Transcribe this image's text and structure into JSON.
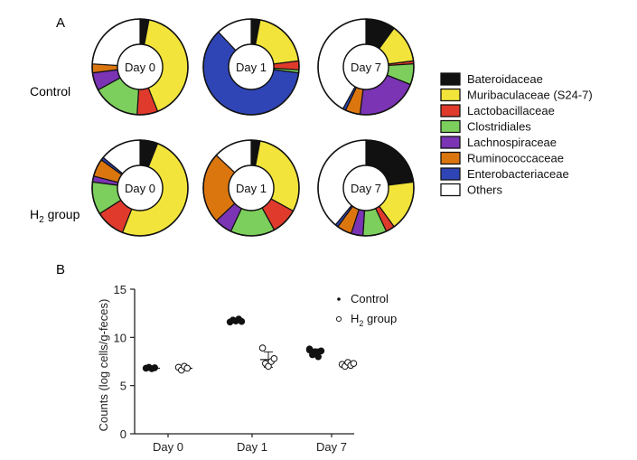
{
  "panel_a": {
    "label": "A",
    "row_labels": [
      "Control",
      "H2 group"
    ],
    "center_labels": [
      "Day 0",
      "Day 1",
      "Day 7"
    ],
    "categories": [
      {
        "name": "Bateroidaceae",
        "color": "#111111"
      },
      {
        "name": "Muribaculaceae (S24-7)",
        "color": "#f2e43a"
      },
      {
        "name": "Lactobacillaceae",
        "color": "#e03a2c"
      },
      {
        "name": "Clostridiales",
        "color": "#7ccf5c"
      },
      {
        "name": "Lachnospiraceae",
        "color": "#7a34b4"
      },
      {
        "name": "Ruminococcaceae",
        "color": "#db760f"
      },
      {
        "name": "Enterobacteriaceae",
        "color": "#2f45b6"
      },
      {
        "name": "Others",
        "color": "#ffffff"
      }
    ]
  },
  "panel_b": {
    "label": "B",
    "legend": [
      "Control",
      "H2 group"
    ]
  },
  "chart_data": [
    {
      "type": "pie",
      "title": "Control - Day 0",
      "group": "Control",
      "day": "Day 0",
      "center_label": "Day 0",
      "categories": [
        "Bateroidaceae",
        "Muribaculaceae (S24-7)",
        "Lactobacillaceae",
        "Clostridiales",
        "Lachnospiraceae",
        "Ruminococcaceae",
        "Enterobacteriaceae",
        "Others"
      ],
      "values": [
        3,
        41,
        7,
        16,
        6,
        3,
        0,
        24
      ]
    },
    {
      "type": "pie",
      "title": "Control - Day 1",
      "group": "Control",
      "day": "Day 1",
      "center_label": "Day 1",
      "categories": [
        "Bateroidaceae",
        "Muribaculaceae (S24-7)",
        "Lactobacillaceae",
        "Clostridiales",
        "Lachnospiraceae",
        "Ruminococcaceae",
        "Enterobacteriaceae",
        "Others"
      ],
      "values": [
        3,
        20,
        3,
        1,
        0,
        0,
        61,
        12
      ]
    },
    {
      "type": "pie",
      "title": "Control - Day 7",
      "group": "Control",
      "day": "Day 7",
      "center_label": "Day 7",
      "categories": [
        "Bateroidaceae",
        "Muribaculaceae (S24-7)",
        "Lactobacillaceae",
        "Clostridiales",
        "Lachnospiraceae",
        "Ruminococcaceae",
        "Enterobacteriaceae",
        "Others"
      ],
      "values": [
        10,
        13,
        1,
        7,
        21,
        5,
        1,
        42
      ]
    },
    {
      "type": "pie",
      "title": "H2 group - Day 0",
      "group": "H2 group",
      "day": "Day 0",
      "center_label": "Day 0",
      "categories": [
        "Bateroidaceae",
        "Muribaculaceae (S24-7)",
        "Lactobacillaceae",
        "Clostridiales",
        "Lachnospiraceae",
        "Ruminococcaceae",
        "Enterobacteriaceae",
        "Others"
      ],
      "values": [
        6,
        50,
        10,
        11,
        2,
        6,
        1,
        14
      ]
    },
    {
      "type": "pie",
      "title": "H2 group - Day 1",
      "group": "H2 group",
      "day": "Day 1",
      "center_label": "Day 1",
      "categories": [
        "Bateroidaceae",
        "Muribaculaceae (S24-7)",
        "Lactobacillaceae",
        "Clostridiales",
        "Lachnospiraceae",
        "Ruminococcaceae",
        "Enterobacteriaceae",
        "Others"
      ],
      "values": [
        3,
        30,
        9,
        15,
        6,
        24,
        0,
        13
      ]
    },
    {
      "type": "pie",
      "title": "H2 group - Day 7",
      "group": "H2 group",
      "day": "Day 7",
      "center_label": "Day 7",
      "categories": [
        "Bateroidaceae",
        "Muribaculaceae (S24-7)",
        "Lactobacillaceae",
        "Clostridiales",
        "Lachnospiraceae",
        "Ruminococcaceae",
        "Enterobacteriaceae",
        "Others"
      ],
      "values": [
        23,
        17,
        3,
        8,
        4,
        5,
        1,
        39
      ]
    },
    {
      "type": "scatter",
      "title": "",
      "xlabel": "",
      "ylabel": "Counts (log cells/g-feces)",
      "categories": [
        "Day 0",
        "Day 1",
        "Day 7"
      ],
      "ylim": [
        0,
        15
      ],
      "yticks": [
        0,
        5,
        10,
        15
      ],
      "series": [
        {
          "name": "Control",
          "marker": "filled",
          "points": [
            {
              "x": "Day 0",
              "y": 6.8
            },
            {
              "x": "Day 0",
              "y": 6.9
            },
            {
              "x": "Day 0",
              "y": 6.75
            },
            {
              "x": "Day 0",
              "y": 6.85
            },
            {
              "x": "Day 1",
              "y": 11.6
            },
            {
              "x": "Day 1",
              "y": 11.8
            },
            {
              "x": "Day 1",
              "y": 11.7
            },
            {
              "x": "Day 1",
              "y": 11.9
            },
            {
              "x": "Day 1",
              "y": 11.65
            },
            {
              "x": "Day 7",
              "y": 8.7
            },
            {
              "x": "Day 7",
              "y": 8.2
            },
            {
              "x": "Day 7",
              "y": 8.5
            },
            {
              "x": "Day 7",
              "y": 8.0
            },
            {
              "x": "Day 7",
              "y": 8.6
            },
            {
              "x": "Day 7",
              "y": 8.8
            }
          ]
        },
        {
          "name": "H2 group",
          "marker": "open",
          "points": [
            {
              "x": "Day 0",
              "y": 6.9
            },
            {
              "x": "Day 0",
              "y": 6.6
            },
            {
              "x": "Day 0",
              "y": 7.0
            },
            {
              "x": "Day 0",
              "y": 6.8
            },
            {
              "x": "Day 1",
              "y": 8.9
            },
            {
              "x": "Day 1",
              "y": 7.3
            },
            {
              "x": "Day 1",
              "y": 7.0
            },
            {
              "x": "Day 1",
              "y": 7.5
            },
            {
              "x": "Day 1",
              "y": 7.8
            },
            {
              "x": "Day 7",
              "y": 7.2
            },
            {
              "x": "Day 7",
              "y": 7.0
            },
            {
              "x": "Day 7",
              "y": 7.4
            },
            {
              "x": "Day 7",
              "y": 7.1
            },
            {
              "x": "Day 7",
              "y": 7.3
            }
          ]
        }
      ],
      "error_bars": [
        {
          "series": "Control",
          "x": "Day 0",
          "mean": 6.8,
          "sd": 0.1
        },
        {
          "series": "Control",
          "x": "Day 1",
          "mean": 11.7,
          "sd": 0.15
        },
        {
          "series": "Control",
          "x": "Day 7",
          "mean": 8.45,
          "sd": 0.35
        },
        {
          "series": "H2 group",
          "x": "Day 0",
          "mean": 6.8,
          "sd": 0.2
        },
        {
          "series": "H2 group",
          "x": "Day 1",
          "mean": 7.7,
          "sd": 0.8
        },
        {
          "series": "H2 group",
          "x": "Day 7",
          "mean": 7.2,
          "sd": 0.2
        }
      ]
    }
  ]
}
